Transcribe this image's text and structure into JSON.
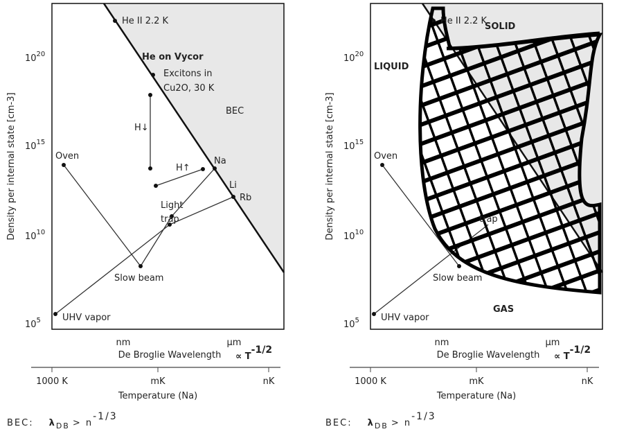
{
  "panels": [
    {
      "y_axis_title": "Density per internal state [cm-3]",
      "yticks": [
        {
          "base": "10",
          "exp": "20"
        },
        {
          "base": "10",
          "exp": "15"
        },
        {
          "base": "10",
          "exp": "10"
        },
        {
          "base": "10",
          "exp": "5"
        }
      ],
      "x_labels": [
        "nm",
        "µm"
      ],
      "x_axis_title": "De Broglie Wavelength",
      "proportional": {
        "text": "∝ T",
        "exp": "-1/2"
      },
      "temp_ticks": [
        "1000 K",
        "mK",
        "nK"
      ],
      "temp_title": "Temperature (Na)",
      "formula": {
        "lhs": "BEC:",
        "lambda": "λ",
        "sub": "DB",
        "rhs": "> n",
        "exp": "-1/3"
      },
      "annotations": {
        "he2": "He II 2.2 K",
        "vycor": "He on Vycor",
        "exc1": "Excitons in",
        "exc2": "Cu2O, 30 K",
        "bec": "BEC",
        "hdown": "H↓",
        "oven": "Oven",
        "hup": "H↑",
        "na": "Na",
        "li": "Li",
        "rb": "Rb",
        "light1": "Light",
        "light2": "trap",
        "slow": "Slow beam",
        "uhv": "UHV vapor"
      }
    },
    {
      "y_axis_title": "Density per internal state [cm-3]",
      "yticks": [
        {
          "base": "10",
          "exp": "20"
        },
        {
          "base": "10",
          "exp": "15"
        },
        {
          "base": "10",
          "exp": "10"
        },
        {
          "base": "10",
          "exp": "5"
        }
      ],
      "x_labels": [
        "nm",
        "µm"
      ],
      "x_axis_title": "De Broglie Wavelength",
      "proportional": {
        "text": "∝ T",
        "exp": "-1/2"
      },
      "temp_ticks": [
        "1000 K",
        "mK",
        "nK"
      ],
      "temp_title": "Temperature (Na)",
      "formula": {
        "lhs": "BEC:",
        "lambda": "λ",
        "sub": "DB",
        "rhs": "> n",
        "exp": "-1/3"
      },
      "annotations": {
        "he2": "He II 2.2 K",
        "oven": "Oven",
        "slow": "Slow beam",
        "uhv": "UHV vapor",
        "light2": "trap",
        "solid": "SOLID",
        "liquid": "LIQUID",
        "gas": "GAS"
      }
    }
  ]
}
